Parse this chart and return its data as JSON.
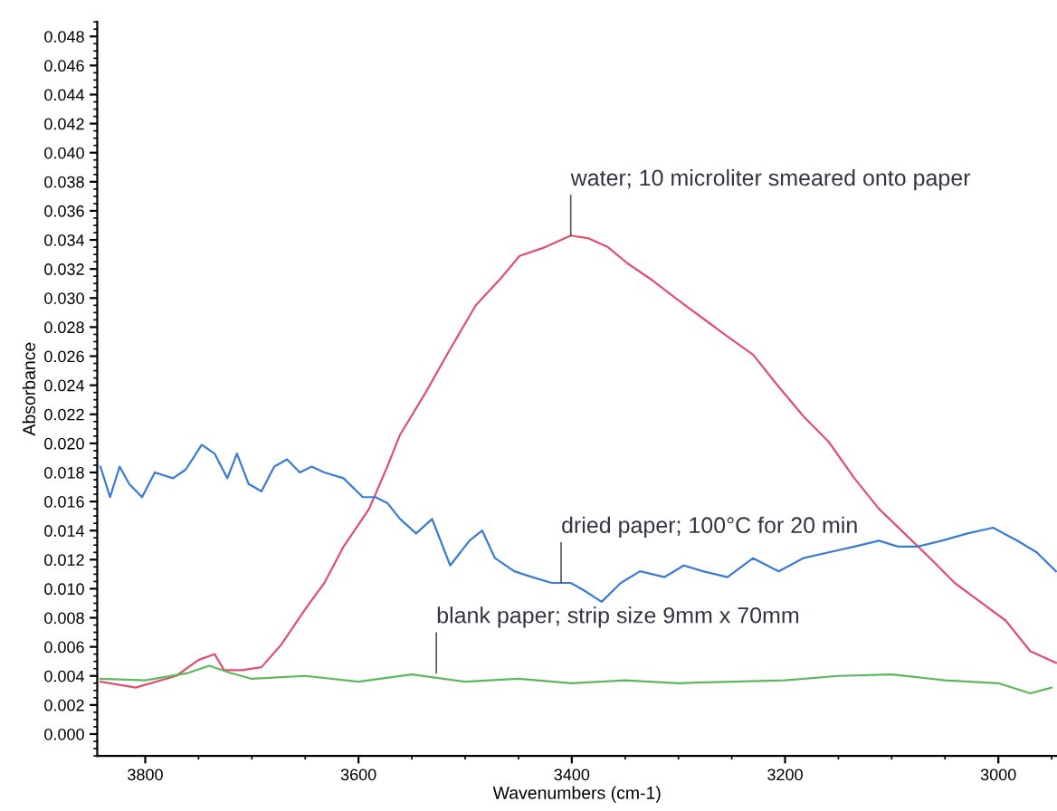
{
  "chart_data": {
    "type": "line",
    "xlabel": "Wavenumbers (cm-1)",
    "ylabel": "Absorbance",
    "xlim": [
      3845,
      2945
    ],
    "xticks": [
      3800,
      3600,
      3400,
      3200,
      3000
    ],
    "ylim": [
      -0.0015,
      0.049
    ],
    "yticks": [
      {
        "value": 0,
        "label": "0.000"
      },
      {
        "value": 0.002,
        "label": "0.002"
      },
      {
        "value": 0.004,
        "label": "0.004"
      },
      {
        "value": 0.006,
        "label": "0.006"
      },
      {
        "value": 0.008,
        "label": "0.008"
      },
      {
        "value": 0.01,
        "label": "0.010"
      },
      {
        "value": 0.012,
        "label": "0.012"
      },
      {
        "value": 0.014,
        "label": "0.014"
      },
      {
        "value": 0.016,
        "label": "0.016"
      },
      {
        "value": 0.018,
        "label": "0.018"
      },
      {
        "value": 0.02,
        "label": "0.020"
      },
      {
        "value": 0.022,
        "label": "0.022"
      },
      {
        "value": 0.024,
        "label": "0.024"
      },
      {
        "value": 0.026,
        "label": "0.026"
      },
      {
        "value": 0.028,
        "label": "0.028"
      },
      {
        "value": 0.03,
        "label": "0.030"
      },
      {
        "value": 0.032,
        "label": "0.032"
      },
      {
        "value": 0.034,
        "label": "0.034"
      },
      {
        "value": 0.036,
        "label": "0.036"
      },
      {
        "value": 0.038,
        "label": "0.038"
      },
      {
        "value": 0.04,
        "label": "0.040"
      },
      {
        "value": 0.042,
        "label": "0.042"
      },
      {
        "value": 0.044,
        "label": "0.044"
      },
      {
        "value": 0.046,
        "label": "0.046"
      },
      {
        "value": 0.048,
        "label": "0.048"
      }
    ],
    "grid": false,
    "legend": false,
    "marker": "none",
    "line_style": "solid",
    "series": [
      {
        "color": "#e0506e",
        "x": [
          3842,
          3809,
          3771,
          3750,
          3735,
          3726,
          3709,
          3691,
          3673,
          3649,
          3632,
          3614,
          3590,
          3573,
          3561,
          3537,
          3514,
          3490,
          3466,
          3449,
          3425,
          3401,
          3384,
          3366,
          3348,
          3324,
          3301,
          3277,
          3253,
          3230,
          3206,
          3182,
          3159,
          3135,
          3112,
          3088,
          3064,
          3041,
          3017,
          2993,
          2970,
          2946
        ],
        "values": [
          0.0036,
          0.0032,
          0.004,
          0.0051,
          0.0055,
          0.0044,
          0.0044,
          0.0046,
          0.0061,
          0.0087,
          0.0104,
          0.0129,
          0.0155,
          0.0184,
          0.0206,
          0.0235,
          0.0265,
          0.0295,
          0.0314,
          0.0329,
          0.0335,
          0.0343,
          0.0341,
          0.0335,
          0.0324,
          0.0312,
          0.0299,
          0.0286,
          0.0273,
          0.0261,
          0.0239,
          0.0218,
          0.0201,
          0.0176,
          0.0155,
          0.0138,
          0.0121,
          0.0104,
          0.0091,
          0.0078,
          0.0057,
          0.0049
        ]
      },
      {
        "color": "#3a7bd5",
        "x": [
          3842,
          3833,
          3824,
          3815,
          3803,
          3791,
          3774,
          3762,
          3747,
          3735,
          3723,
          3714,
          3703,
          3691,
          3679,
          3667,
          3655,
          3644,
          3632,
          3614,
          3596,
          3584,
          3573,
          3561,
          3546,
          3531,
          3514,
          3496,
          3484,
          3472,
          3454,
          3437,
          3419,
          3401,
          3389,
          3372,
          3354,
          3336,
          3313,
          3295,
          3277,
          3254,
          3230,
          3206,
          3183,
          3159,
          3135,
          3112,
          3094,
          3076,
          3053,
          3029,
          3005,
          2982,
          2964,
          2946
        ],
        "values": [
          0.0184,
          0.0163,
          0.0184,
          0.0172,
          0.0163,
          0.018,
          0.0176,
          0.0182,
          0.0199,
          0.0193,
          0.0176,
          0.0193,
          0.0172,
          0.0167,
          0.0184,
          0.0189,
          0.018,
          0.0184,
          0.018,
          0.0176,
          0.0163,
          0.0163,
          0.0159,
          0.0148,
          0.0138,
          0.0148,
          0.0116,
          0.0133,
          0.014,
          0.0121,
          0.0112,
          0.0108,
          0.0104,
          0.0104,
          0.0099,
          0.0091,
          0.0104,
          0.0112,
          0.0108,
          0.0116,
          0.0112,
          0.0108,
          0.0121,
          0.0112,
          0.0121,
          0.0125,
          0.0129,
          0.0133,
          0.0129,
          0.0129,
          0.0133,
          0.0138,
          0.0142,
          0.0133,
          0.0125,
          0.0112
        ]
      },
      {
        "color": "#5cb85c",
        "x": [
          3842,
          3800,
          3760,
          3740,
          3720,
          3700,
          3650,
          3600,
          3550,
          3500,
          3450,
          3400,
          3350,
          3300,
          3250,
          3200,
          3150,
          3100,
          3050,
          3000,
          2970,
          2950
        ],
        "values": [
          0.0038,
          0.0037,
          0.0042,
          0.0047,
          0.0042,
          0.0038,
          0.004,
          0.0036,
          0.0041,
          0.0036,
          0.0038,
          0.0035,
          0.0037,
          0.0035,
          0.0036,
          0.0037,
          0.004,
          0.0041,
          0.0037,
          0.0035,
          0.0028,
          0.0032
        ]
      }
    ],
    "annotations": [
      {
        "text": "water; 10 microliter smeared onto paper",
        "x": 3401,
        "y": 0.0343
      },
      {
        "text": "dried paper; 100°C for 20 min",
        "x": 3410,
        "y": 0.0104
      },
      {
        "text": "blank paper; strip size 9mm x 70mm",
        "x": 3527,
        "y": 0.0042
      }
    ]
  }
}
